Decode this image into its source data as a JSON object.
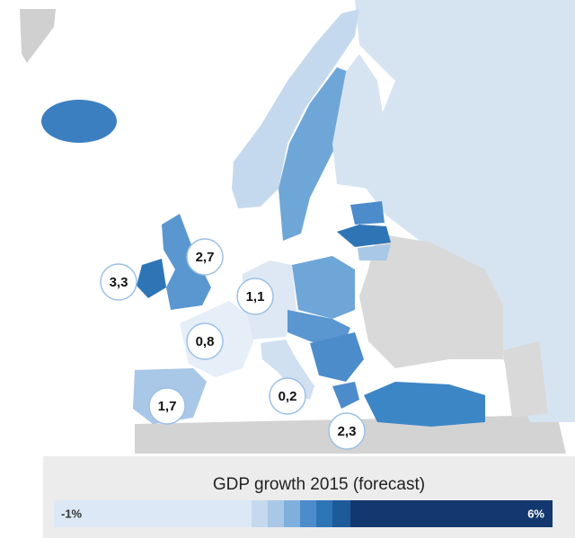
{
  "map": {
    "labels": [
      {
        "text": "3,3"
      },
      {
        "text": "2,7"
      },
      {
        "text": "1,1"
      },
      {
        "text": "0,8"
      },
      {
        "text": "1,7"
      },
      {
        "text": "0,2"
      },
      {
        "text": "2,3"
      }
    ]
  },
  "legend": {
    "title": "GDP growth 2015 (forecast)",
    "min_label": "-1%",
    "max_label": "6%"
  }
}
